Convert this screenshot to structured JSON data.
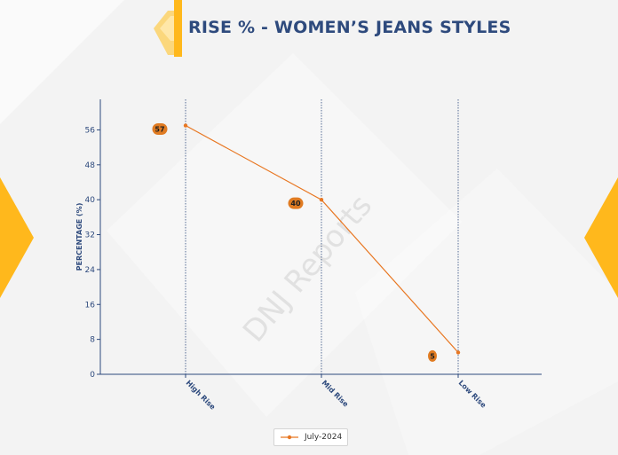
{
  "header": {
    "title": "RISE % - WOMEN’S JEANS STYLES"
  },
  "watermark": "DNJ Reports",
  "colors": {
    "accent": "#FFB81C",
    "title": "#2E4A7D",
    "series": "#E87722",
    "axis": "#2E4A7D",
    "label_badge": "#E07B22"
  },
  "chart_data": {
    "type": "line",
    "title": "RISE % - WOMEN’S JEANS STYLES",
    "xlabel": "",
    "ylabel": "PERCENTAGE (%)",
    "categories": [
      "High Rise",
      "Mid Rise",
      "Low Rise"
    ],
    "series": [
      {
        "name": "July-2024",
        "values": [
          57,
          40,
          5
        ]
      }
    ],
    "data_labels": [
      "57",
      "40",
      "5"
    ],
    "ylim": [
      0,
      63
    ],
    "yticks": [
      0,
      8,
      16,
      24,
      32,
      40,
      48,
      56
    ],
    "vertical_gridlines": true,
    "legend": "bottom-center"
  }
}
